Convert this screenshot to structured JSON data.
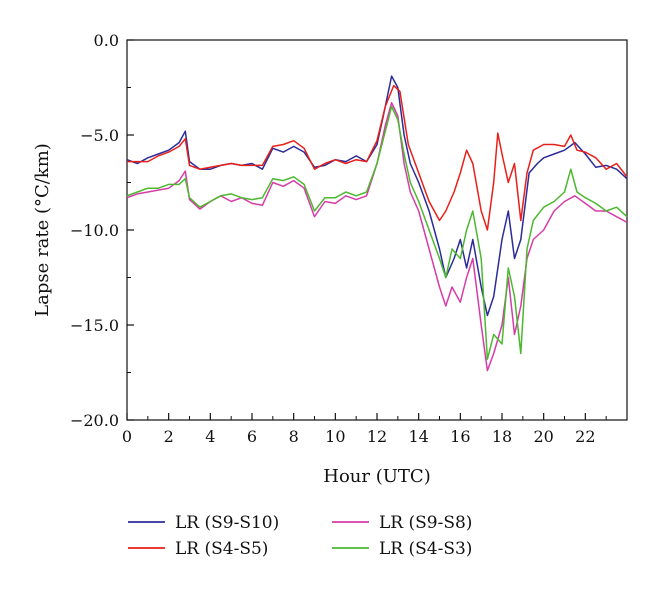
{
  "chart_data": {
    "type": "line",
    "xlabel": "Hour (UTC)",
    "ylabel": "Lapse rate (°C/km)",
    "xlim": [
      0,
      24
    ],
    "ylim": [
      -20,
      0
    ],
    "x_ticks": [
      0,
      2,
      4,
      6,
      8,
      10,
      12,
      14,
      16,
      18,
      20,
      22
    ],
    "y_ticks": [
      0,
      -5,
      -10,
      -15,
      -20
    ],
    "y_tick_labels": [
      "0.0",
      "−5.0",
      "−10.0",
      "−15.0",
      "−20.0"
    ],
    "grid": false,
    "legend_position": "bottom",
    "series": [
      {
        "name": "LR (S9-S10)",
        "color": "#2b2b9a",
        "points": [
          [
            0,
            -6.3
          ],
          [
            0.5,
            -6.5
          ],
          [
            1,
            -6.2
          ],
          [
            1.5,
            -6.0
          ],
          [
            2,
            -5.8
          ],
          [
            2.5,
            -5.4
          ],
          [
            2.8,
            -4.8
          ],
          [
            3,
            -6.4
          ],
          [
            3.5,
            -6.8
          ],
          [
            4,
            -6.8
          ],
          [
            4.5,
            -6.6
          ],
          [
            5,
            -6.5
          ],
          [
            5.5,
            -6.6
          ],
          [
            6,
            -6.5
          ],
          [
            6.5,
            -6.8
          ],
          [
            7,
            -5.7
          ],
          [
            7.5,
            -5.9
          ],
          [
            8,
            -5.6
          ],
          [
            8.5,
            -5.9
          ],
          [
            9,
            -6.7
          ],
          [
            9.5,
            -6.6
          ],
          [
            10,
            -6.3
          ],
          [
            10.5,
            -6.4
          ],
          [
            11,
            -6.1
          ],
          [
            11.5,
            -6.4
          ],
          [
            12,
            -5.5
          ],
          [
            12.3,
            -4.0
          ],
          [
            12.7,
            -1.9
          ],
          [
            13,
            -2.5
          ],
          [
            13.3,
            -5.0
          ],
          [
            13.6,
            -6.5
          ],
          [
            14,
            -7.5
          ],
          [
            14.5,
            -9.0
          ],
          [
            15,
            -11.0
          ],
          [
            15.3,
            -12.5
          ],
          [
            15.7,
            -11.5
          ],
          [
            16,
            -10.5
          ],
          [
            16.3,
            -12.0
          ],
          [
            16.6,
            -10.5
          ],
          [
            17,
            -13.0
          ],
          [
            17.3,
            -14.5
          ],
          [
            17.6,
            -13.5
          ],
          [
            18,
            -10.5
          ],
          [
            18.3,
            -9.0
          ],
          [
            18.6,
            -11.5
          ],
          [
            18.9,
            -10.5
          ],
          [
            19.3,
            -7.0
          ],
          [
            19.7,
            -6.5
          ],
          [
            20,
            -6.2
          ],
          [
            20.5,
            -6.0
          ],
          [
            21,
            -5.8
          ],
          [
            21.5,
            -5.4
          ],
          [
            22,
            -6.0
          ],
          [
            22.5,
            -6.7
          ],
          [
            23,
            -6.6
          ],
          [
            23.5,
            -6.8
          ],
          [
            24,
            -7.3
          ]
        ]
      },
      {
        "name": "LR (S4-S5)",
        "color": "#e8201a",
        "points": [
          [
            0,
            -6.4
          ],
          [
            0.5,
            -6.4
          ],
          [
            1,
            -6.4
          ],
          [
            1.5,
            -6.1
          ],
          [
            2,
            -5.9
          ],
          [
            2.5,
            -5.6
          ],
          [
            2.8,
            -5.2
          ],
          [
            3,
            -6.6
          ],
          [
            3.5,
            -6.8
          ],
          [
            4,
            -6.7
          ],
          [
            4.5,
            -6.6
          ],
          [
            5,
            -6.5
          ],
          [
            5.5,
            -6.6
          ],
          [
            6,
            -6.6
          ],
          [
            6.5,
            -6.6
          ],
          [
            7,
            -5.6
          ],
          [
            7.5,
            -5.5
          ],
          [
            8,
            -5.3
          ],
          [
            8.5,
            -5.7
          ],
          [
            9,
            -6.8
          ],
          [
            9.5,
            -6.5
          ],
          [
            10,
            -6.3
          ],
          [
            10.5,
            -6.5
          ],
          [
            11,
            -6.3
          ],
          [
            11.5,
            -6.4
          ],
          [
            12,
            -5.3
          ],
          [
            12.4,
            -3.5
          ],
          [
            12.8,
            -2.4
          ],
          [
            13.1,
            -2.7
          ],
          [
            13.5,
            -5.5
          ],
          [
            14,
            -7.0
          ],
          [
            14.5,
            -8.5
          ],
          [
            15,
            -9.5
          ],
          [
            15.3,
            -9.0
          ],
          [
            15.7,
            -8.0
          ],
          [
            16,
            -7.0
          ],
          [
            16.3,
            -5.8
          ],
          [
            16.6,
            -6.5
          ],
          [
            17,
            -9.0
          ],
          [
            17.3,
            -10.0
          ],
          [
            17.6,
            -7.5
          ],
          [
            17.8,
            -4.9
          ],
          [
            18,
            -6.0
          ],
          [
            18.3,
            -7.5
          ],
          [
            18.6,
            -6.5
          ],
          [
            18.9,
            -9.5
          ],
          [
            19.2,
            -7.0
          ],
          [
            19.5,
            -5.8
          ],
          [
            20,
            -5.5
          ],
          [
            20.5,
            -5.5
          ],
          [
            21,
            -5.6
          ],
          [
            21.3,
            -5.0
          ],
          [
            21.6,
            -5.8
          ],
          [
            22,
            -5.9
          ],
          [
            22.5,
            -6.2
          ],
          [
            23,
            -6.8
          ],
          [
            23.5,
            -6.5
          ],
          [
            24,
            -7.2
          ]
        ]
      },
      {
        "name": "LR (S9-S8)",
        "color": "#d63ca8",
        "points": [
          [
            0,
            -8.3
          ],
          [
            0.5,
            -8.1
          ],
          [
            1,
            -8.0
          ],
          [
            1.5,
            -7.9
          ],
          [
            2,
            -7.8
          ],
          [
            2.5,
            -7.4
          ],
          [
            2.8,
            -6.9
          ],
          [
            3,
            -8.4
          ],
          [
            3.5,
            -8.9
          ],
          [
            4,
            -8.5
          ],
          [
            4.5,
            -8.2
          ],
          [
            5,
            -8.5
          ],
          [
            5.5,
            -8.3
          ],
          [
            6,
            -8.6
          ],
          [
            6.5,
            -8.7
          ],
          [
            7,
            -7.5
          ],
          [
            7.5,
            -7.7
          ],
          [
            8,
            -7.4
          ],
          [
            8.5,
            -7.8
          ],
          [
            9,
            -9.3
          ],
          [
            9.5,
            -8.5
          ],
          [
            10,
            -8.6
          ],
          [
            10.5,
            -8.2
          ],
          [
            11,
            -8.4
          ],
          [
            11.5,
            -8.2
          ],
          [
            12,
            -6.5
          ],
          [
            12.4,
            -4.5
          ],
          [
            12.7,
            -3.3
          ],
          [
            13,
            -4.0
          ],
          [
            13.3,
            -6.5
          ],
          [
            13.6,
            -8.0
          ],
          [
            14,
            -9.0
          ],
          [
            14.5,
            -11.0
          ],
          [
            15,
            -13.0
          ],
          [
            15.3,
            -14.0
          ],
          [
            15.6,
            -13.0
          ],
          [
            16,
            -13.8
          ],
          [
            16.3,
            -12.5
          ],
          [
            16.6,
            -11.5
          ],
          [
            17,
            -15.0
          ],
          [
            17.3,
            -17.4
          ],
          [
            17.6,
            -16.5
          ],
          [
            18,
            -15.0
          ],
          [
            18.3,
            -12.5
          ],
          [
            18.6,
            -15.5
          ],
          [
            18.9,
            -14.0
          ],
          [
            19.2,
            -11.5
          ],
          [
            19.5,
            -10.5
          ],
          [
            20,
            -10.0
          ],
          [
            20.5,
            -9.0
          ],
          [
            21,
            -8.5
          ],
          [
            21.5,
            -8.2
          ],
          [
            22,
            -8.6
          ],
          [
            22.5,
            -9.0
          ],
          [
            23,
            -9.0
          ],
          [
            23.5,
            -9.3
          ],
          [
            24,
            -9.6
          ]
        ]
      },
      {
        "name": "LR (S4-S3)",
        "color": "#4cb82e",
        "points": [
          [
            0,
            -8.2
          ],
          [
            0.5,
            -8.0
          ],
          [
            1,
            -7.8
          ],
          [
            1.5,
            -7.8
          ],
          [
            2,
            -7.6
          ],
          [
            2.5,
            -7.6
          ],
          [
            2.8,
            -7.3
          ],
          [
            3,
            -8.3
          ],
          [
            3.5,
            -8.8
          ],
          [
            4,
            -8.5
          ],
          [
            4.5,
            -8.2
          ],
          [
            5,
            -8.1
          ],
          [
            5.5,
            -8.3
          ],
          [
            6,
            -8.4
          ],
          [
            6.5,
            -8.3
          ],
          [
            7,
            -7.3
          ],
          [
            7.5,
            -7.4
          ],
          [
            8,
            -7.2
          ],
          [
            8.5,
            -7.6
          ],
          [
            9,
            -9.0
          ],
          [
            9.5,
            -8.3
          ],
          [
            10,
            -8.3
          ],
          [
            10.5,
            -8.0
          ],
          [
            11,
            -8.2
          ],
          [
            11.5,
            -8.0
          ],
          [
            12,
            -6.5
          ],
          [
            12.4,
            -4.8
          ],
          [
            12.7,
            -3.5
          ],
          [
            13,
            -4.2
          ],
          [
            13.3,
            -6.0
          ],
          [
            13.6,
            -7.5
          ],
          [
            14,
            -8.5
          ],
          [
            14.5,
            -10.0
          ],
          [
            15,
            -11.5
          ],
          [
            15.3,
            -12.5
          ],
          [
            15.6,
            -11.0
          ],
          [
            16,
            -11.5
          ],
          [
            16.3,
            -10.0
          ],
          [
            16.6,
            -9.0
          ],
          [
            17,
            -11.5
          ],
          [
            17.3,
            -16.8
          ],
          [
            17.6,
            -15.5
          ],
          [
            18,
            -16.0
          ],
          [
            18.3,
            -12.0
          ],
          [
            18.6,
            -13.5
          ],
          [
            18.9,
            -16.5
          ],
          [
            19.2,
            -11.0
          ],
          [
            19.5,
            -9.5
          ],
          [
            20,
            -8.8
          ],
          [
            20.5,
            -8.5
          ],
          [
            21,
            -8.0
          ],
          [
            21.3,
            -6.8
          ],
          [
            21.6,
            -8.0
          ],
          [
            22,
            -8.3
          ],
          [
            22.5,
            -8.6
          ],
          [
            23,
            -9.0
          ],
          [
            23.5,
            -8.8
          ],
          [
            24,
            -9.3
          ]
        ]
      }
    ]
  }
}
